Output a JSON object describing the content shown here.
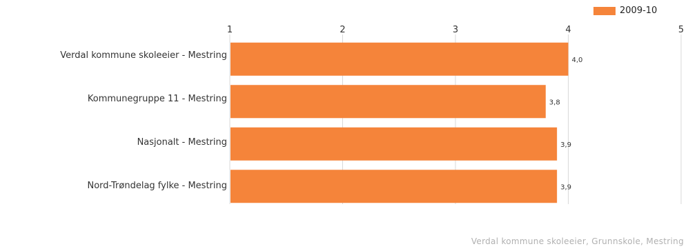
{
  "chart_data": {
    "type": "bar",
    "orientation": "horizontal",
    "categories": [
      "Verdal kommune skoleeier - Mestring",
      "Kommunegruppe 11 - Mestring",
      "Nasjonalt - Mestring",
      "Nord-Trøndelag fylke - Mestring"
    ],
    "series": [
      {
        "name": "2009-10",
        "values": [
          4.0,
          3.8,
          3.9,
          3.9
        ],
        "labels": [
          "4,0",
          "3,8",
          "3,9",
          "3,9"
        ],
        "color": "#f5843a"
      }
    ],
    "xlim": [
      1,
      5
    ],
    "xticks": [
      "1",
      "2",
      "3",
      "4",
      "5"
    ],
    "grid": true,
    "legend_position": "top-right",
    "footer": "Verdal kommune skoleeier, Grunnskole, Mestring"
  }
}
